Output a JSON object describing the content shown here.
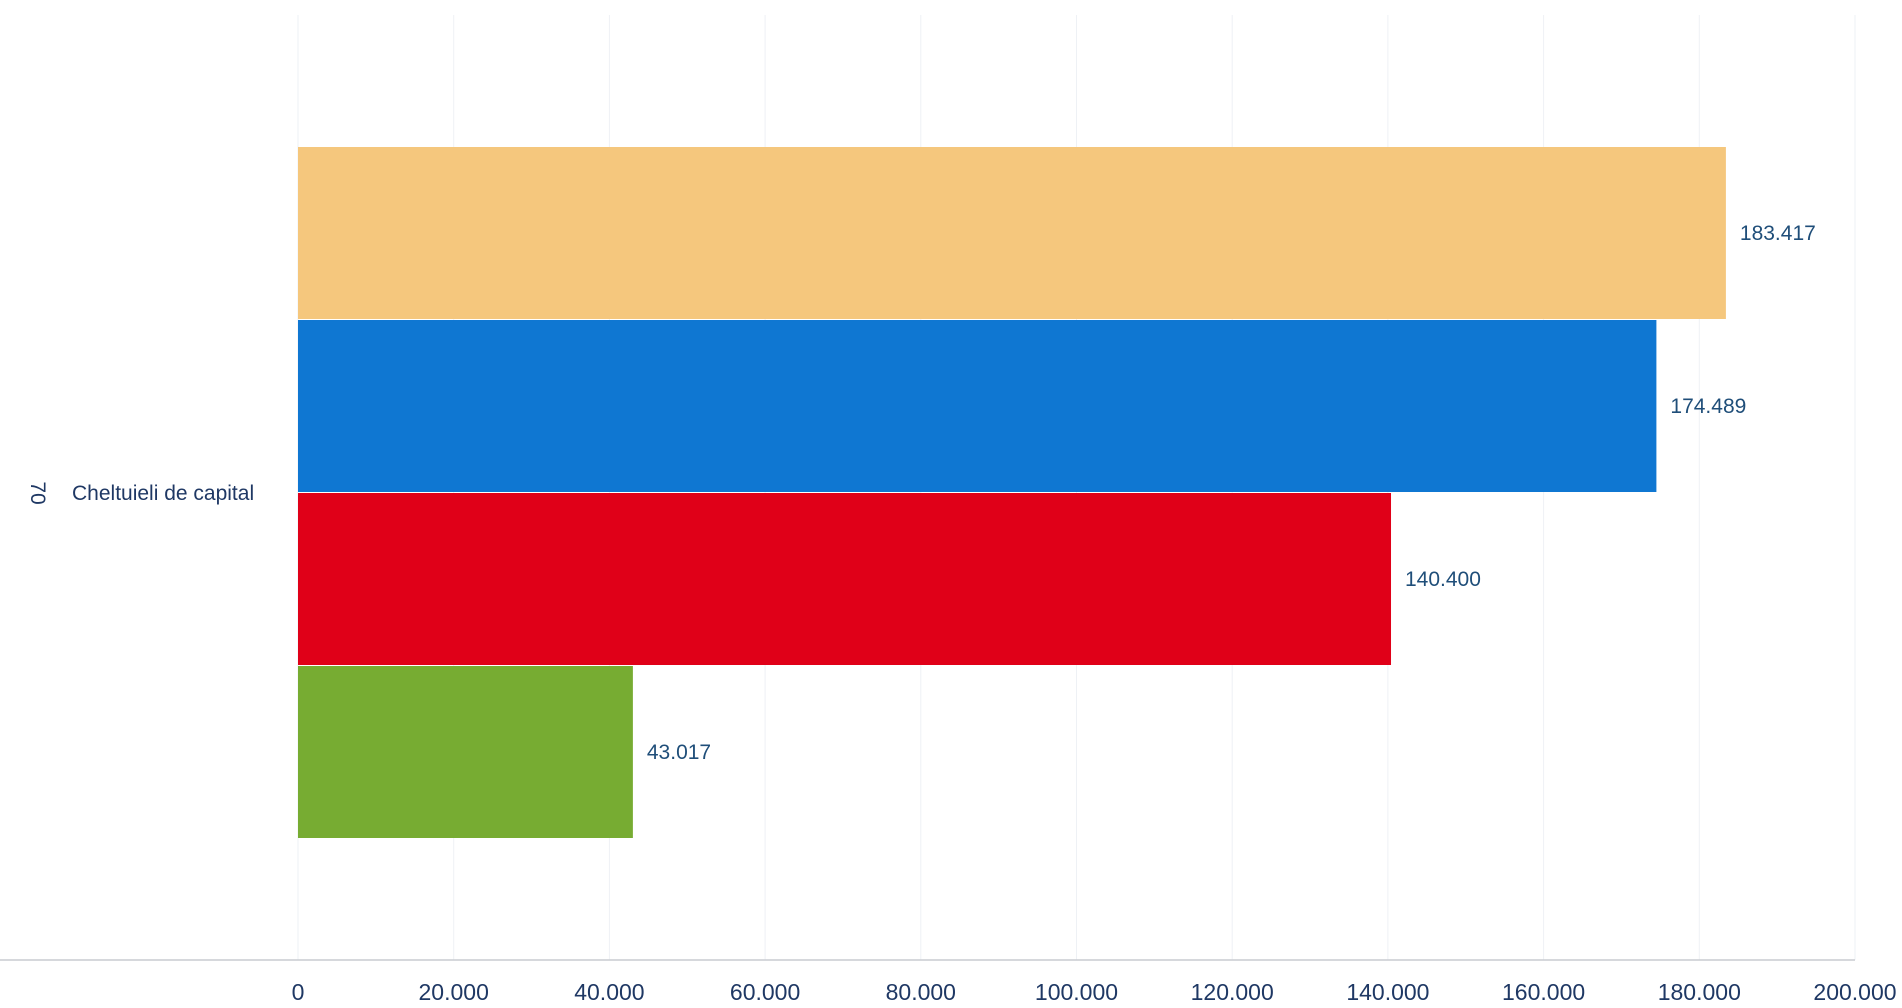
{
  "chart_data": {
    "type": "bar",
    "orientation": "horizontal",
    "title": "",
    "xlabel": "",
    "ylabel": "",
    "category": {
      "code": "70",
      "label": "Cheltuieli de capital"
    },
    "xlim": [
      0,
      200000
    ],
    "x_ticks": [
      0,
      20000,
      40000,
      60000,
      80000,
      100000,
      120000,
      140000,
      160000,
      180000,
      200000
    ],
    "x_tick_labels": [
      "0",
      "20.000",
      "40.000",
      "60.000",
      "80.000",
      "100.000",
      "120.000",
      "140.000",
      "160.000",
      "180.000",
      "200.000"
    ],
    "grid": true,
    "legend": "none",
    "series": [
      {
        "value": 183417,
        "label": "183.417",
        "color": "#f5c77d"
      },
      {
        "value": 174489,
        "label": "174.489",
        "color": "#0f77d2"
      },
      {
        "value": 140400,
        "label": "140.400",
        "color": "#e00018"
      },
      {
        "value": 43017,
        "label": "43.017",
        "color": "#77ac32"
      }
    ]
  }
}
